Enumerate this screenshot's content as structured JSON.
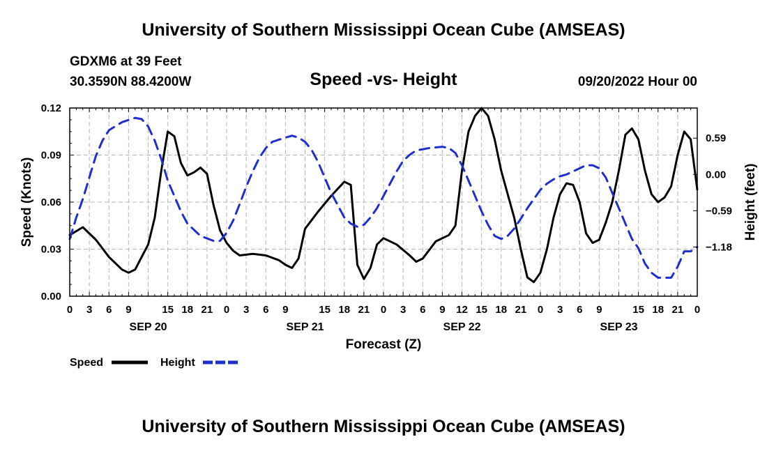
{
  "page": {
    "title_top": "University of Southern Mississippi Ocean Cube (AMSEAS)",
    "title_bottom": "University of Southern Mississippi Ocean Cube (AMSEAS)",
    "station": "GDXM6 at 39 Feet",
    "location": "30.3590N  88.4200W",
    "date": "09/20/2022 Hour 00"
  },
  "chart_data": {
    "type": "line",
    "title": "Speed -vs- Height",
    "xlabel": "Forecast (Z)",
    "ylabel": "Speed (Knots)",
    "y2label": "Height (feet)",
    "xlim": [
      0,
      96
    ],
    "ylim": [
      0,
      0.12
    ],
    "y2lim": [
      -1.98,
      1.08
    ],
    "x_ticks": [
      0,
      3,
      6,
      9,
      12,
      15,
      18,
      21,
      24,
      27,
      30,
      33,
      36,
      39,
      42,
      45,
      48,
      51,
      54,
      57,
      60,
      63,
      66,
      69,
      72,
      75,
      78,
      81,
      84,
      87,
      90,
      93,
      96
    ],
    "x_tick_labels": [
      "0",
      "3",
      "6",
      "9",
      "15",
      "18",
      "21",
      "0",
      "3",
      "6",
      "9",
      "15",
      "18",
      "21",
      "0",
      "3",
      "6",
      "9",
      "12",
      "15",
      "18",
      "21",
      "0",
      "3",
      "6",
      "9",
      "15",
      "18",
      "21",
      "0"
    ],
    "x_tick_label_hours": [
      0,
      3,
      6,
      9,
      15,
      18,
      21,
      24,
      27,
      30,
      33,
      39,
      42,
      45,
      48,
      51,
      54,
      57,
      60,
      63,
      66,
      69,
      72,
      75,
      78,
      81,
      87,
      90,
      93,
      96
    ],
    "day_labels": [
      {
        "x": 12,
        "label": "SEP 20"
      },
      {
        "x": 36,
        "label": "SEP 21"
      },
      {
        "x": 60,
        "label": "SEP 22"
      },
      {
        "x": 84,
        "label": "SEP 23"
      }
    ],
    "y_ticks": [
      0,
      0.03,
      0.06,
      0.09,
      0.12
    ],
    "y_tick_labels": [
      "0.00",
      "0.03",
      "0.06",
      "0.09",
      "0.12"
    ],
    "y2_ticks": [
      0.59,
      0,
      -0.59,
      -1.18
    ],
    "y2_tick_labels": [
      "0.59",
      "0.00",
      "−0.59",
      "−1.18"
    ],
    "grid": true,
    "legend_position": "bottom-left",
    "series": [
      {
        "name": "Speed",
        "axis": "left",
        "color": "#000000",
        "dash": "solid",
        "points": [
          [
            0,
            0.039
          ],
          [
            2,
            0.044
          ],
          [
            4,
            0.036
          ],
          [
            6,
            0.025
          ],
          [
            8,
            0.017
          ],
          [
            9,
            0.015
          ],
          [
            10,
            0.017
          ],
          [
            12,
            0.033
          ],
          [
            13,
            0.05
          ],
          [
            14,
            0.08
          ],
          [
            15,
            0.105
          ],
          [
            16,
            0.102
          ],
          [
            17,
            0.085
          ],
          [
            18,
            0.077
          ],
          [
            19,
            0.079
          ],
          [
            20,
            0.082
          ],
          [
            21,
            0.078
          ],
          [
            22,
            0.058
          ],
          [
            23,
            0.042
          ],
          [
            24,
            0.034
          ],
          [
            25,
            0.029
          ],
          [
            26,
            0.026
          ],
          [
            28,
            0.027
          ],
          [
            30,
            0.026
          ],
          [
            32,
            0.023
          ],
          [
            33,
            0.02
          ],
          [
            34,
            0.018
          ],
          [
            35,
            0.024
          ],
          [
            36,
            0.043
          ],
          [
            38,
            0.054
          ],
          [
            40,
            0.064
          ],
          [
            42,
            0.073
          ],
          [
            43,
            0.071
          ],
          [
            44,
            0.02
          ],
          [
            45,
            0.011
          ],
          [
            46,
            0.018
          ],
          [
            47,
            0.033
          ],
          [
            48,
            0.037
          ],
          [
            50,
            0.033
          ],
          [
            52,
            0.026
          ],
          [
            53,
            0.022
          ],
          [
            54,
            0.024
          ],
          [
            56,
            0.035
          ],
          [
            58,
            0.039
          ],
          [
            59,
            0.045
          ],
          [
            60,
            0.08
          ],
          [
            61,
            0.105
          ],
          [
            62,
            0.115
          ],
          [
            63,
            0.12
          ],
          [
            64,
            0.115
          ],
          [
            65,
            0.1
          ],
          [
            66,
            0.08
          ],
          [
            68,
            0.05
          ],
          [
            69,
            0.03
          ],
          [
            70,
            0.012
          ],
          [
            71,
            0.009
          ],
          [
            72,
            0.015
          ],
          [
            73,
            0.03
          ],
          [
            74,
            0.05
          ],
          [
            75,
            0.065
          ],
          [
            76,
            0.072
          ],
          [
            77,
            0.071
          ],
          [
            78,
            0.06
          ],
          [
            79,
            0.04
          ],
          [
            80,
            0.034
          ],
          [
            81,
            0.036
          ],
          [
            82,
            0.047
          ],
          [
            83,
            0.06
          ],
          [
            84,
            0.08
          ],
          [
            85,
            0.103
          ],
          [
            86,
            0.107
          ],
          [
            87,
            0.1
          ],
          [
            88,
            0.08
          ],
          [
            89,
            0.065
          ],
          [
            90,
            0.06
          ],
          [
            91,
            0.063
          ],
          [
            92,
            0.07
          ],
          [
            93,
            0.09
          ],
          [
            94,
            0.105
          ],
          [
            95,
            0.1
          ],
          [
            96,
            0.068
          ]
        ]
      },
      {
        "name": "Height",
        "axis": "right",
        "color": "#1f2ecf",
        "dash": "dashed",
        "points": [
          [
            0,
            -1.05
          ],
          [
            1,
            -0.7
          ],
          [
            2,
            -0.4
          ],
          [
            3,
            -0.05
          ],
          [
            4,
            0.3
          ],
          [
            5,
            0.55
          ],
          [
            6,
            0.72
          ],
          [
            8,
            0.85
          ],
          [
            10,
            0.92
          ],
          [
            11,
            0.9
          ],
          [
            12,
            0.78
          ],
          [
            13,
            0.55
          ],
          [
            14,
            0.25
          ],
          [
            15,
            -0.1
          ],
          [
            16,
            -0.35
          ],
          [
            17,
            -0.6
          ],
          [
            18,
            -0.8
          ],
          [
            20,
            -1.0
          ],
          [
            22,
            -1.08
          ],
          [
            23,
            -1.08
          ],
          [
            24,
            -0.95
          ],
          [
            25,
            -0.75
          ],
          [
            26,
            -0.48
          ],
          [
            27,
            -0.2
          ],
          [
            28,
            0.05
          ],
          [
            29,
            0.27
          ],
          [
            30,
            0.43
          ],
          [
            31,
            0.53
          ],
          [
            33,
            0.6
          ],
          [
            34,
            0.63
          ],
          [
            35,
            0.6
          ],
          [
            36,
            0.53
          ],
          [
            37,
            0.4
          ],
          [
            38,
            0.2
          ],
          [
            39,
            -0.05
          ],
          [
            40,
            -0.3
          ],
          [
            41,
            -0.5
          ],
          [
            42,
            -0.7
          ],
          [
            43,
            -0.8
          ],
          [
            44,
            -0.85
          ],
          [
            45,
            -0.82
          ],
          [
            46,
            -0.7
          ],
          [
            47,
            -0.55
          ],
          [
            48,
            -0.35
          ],
          [
            49,
            -0.15
          ],
          [
            50,
            0.05
          ],
          [
            51,
            0.22
          ],
          [
            52,
            0.32
          ],
          [
            53,
            0.39
          ],
          [
            55,
            0.43
          ],
          [
            56,
            0.44
          ],
          [
            57,
            0.45
          ],
          [
            58,
            0.43
          ],
          [
            59,
            0.35
          ],
          [
            60,
            0.15
          ],
          [
            61,
            -0.1
          ],
          [
            62,
            -0.35
          ],
          [
            63,
            -0.6
          ],
          [
            64,
            -0.82
          ],
          [
            65,
            -1.0
          ],
          [
            66,
            -1.05
          ],
          [
            67,
            -1.0
          ],
          [
            68,
            -0.88
          ],
          [
            69,
            -0.72
          ],
          [
            70,
            -0.55
          ],
          [
            71,
            -0.4
          ],
          [
            72,
            -0.25
          ],
          [
            73,
            -0.15
          ],
          [
            74,
            -0.08
          ],
          [
            75,
            -0.03
          ],
          [
            76,
            0.0
          ],
          [
            77,
            0.05
          ],
          [
            78,
            0.1
          ],
          [
            79,
            0.15
          ],
          [
            80,
            0.15
          ],
          [
            81,
            0.1
          ],
          [
            82,
            -0.05
          ],
          [
            83,
            -0.3
          ],
          [
            84,
            -0.55
          ],
          [
            85,
            -0.8
          ],
          [
            86,
            -1.05
          ],
          [
            87,
            -1.2
          ],
          [
            88,
            -1.45
          ],
          [
            89,
            -1.6
          ],
          [
            90,
            -1.68
          ],
          [
            92,
            -1.68
          ],
          [
            93,
            -1.5
          ],
          [
            94,
            -1.25
          ],
          [
            95,
            -1.25
          ],
          [
            96,
            -1.18
          ]
        ]
      }
    ],
    "legend": [
      {
        "label": "Speed",
        "color": "#000000",
        "dash": "solid"
      },
      {
        "label": "Height",
        "color": "#1f2ecf",
        "dash": "dashed"
      }
    ]
  }
}
